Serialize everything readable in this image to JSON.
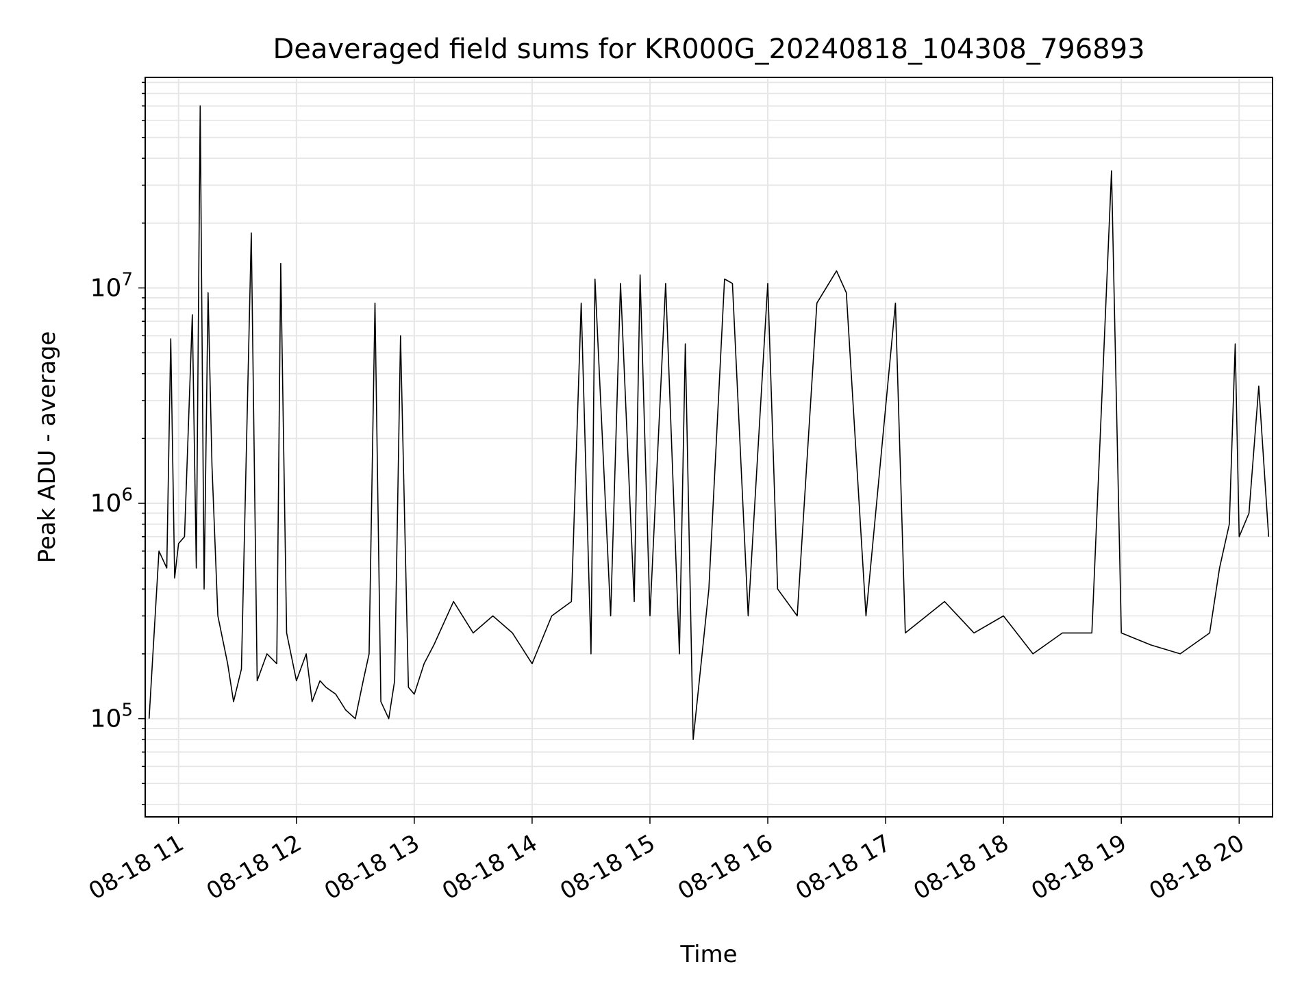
{
  "chart_data": {
    "type": "line",
    "title": "Deaveraged field sums for KR000G_20240818_104308_796893",
    "xlabel": "Time",
    "ylabel": "Peak ADU - average",
    "y_scale": "log",
    "ylim": [
      35000,
      95000000
    ],
    "xlim": [
      "08-18 10:43",
      "08-18 20:17"
    ],
    "x_ticks": [
      "08-18 11",
      "08-18 12",
      "08-18 13",
      "08-18 14",
      "08-18 15",
      "08-18 16",
      "08-18 17",
      "08-18 18",
      "08-18 19",
      "08-18 20"
    ],
    "y_ticks": [
      {
        "base": "10",
        "exp": "5",
        "value": 100000
      },
      {
        "base": "10",
        "exp": "6",
        "value": 1000000
      },
      {
        "base": "10",
        "exp": "7",
        "value": 10000000
      }
    ],
    "grid": true,
    "line_color": "#000000",
    "series": [
      {
        "points": [
          [
            "08-18 10:45",
            100000
          ],
          [
            "08-18 10:50",
            600000
          ],
          [
            "08-18 10:54",
            500000
          ],
          [
            "08-18 10:56",
            5800000
          ],
          [
            "08-18 10:58",
            450000
          ],
          [
            "08-18 11:00",
            650000
          ],
          [
            "08-18 11:03",
            700000
          ],
          [
            "08-18 11:07",
            7500000
          ],
          [
            "08-18 11:09",
            500000
          ],
          [
            "08-18 11:11",
            70000000
          ],
          [
            "08-18 11:13",
            400000
          ],
          [
            "08-18 11:15",
            9500000
          ],
          [
            "08-18 11:17",
            1500000
          ],
          [
            "08-18 11:20",
            300000
          ],
          [
            "08-18 11:25",
            180000
          ],
          [
            "08-18 11:28",
            120000
          ],
          [
            "08-18 11:32",
            170000
          ],
          [
            "08-18 11:37",
            18000000
          ],
          [
            "08-18 11:40",
            150000
          ],
          [
            "08-18 11:45",
            200000
          ],
          [
            "08-18 11:50",
            180000
          ],
          [
            "08-18 11:55",
            250000
          ],
          [
            "08-18 12:00",
            150000
          ],
          [
            "08-18 12:05",
            200000
          ],
          [
            "08-18 11:52",
            13000000
          ],
          [
            "08-18 12:08",
            120000
          ],
          [
            "08-18 12:12",
            150000
          ],
          [
            "08-18 12:15",
            140000
          ],
          [
            "08-18 12:20",
            130000
          ],
          [
            "08-18 12:25",
            110000
          ],
          [
            "08-18 12:30",
            100000
          ],
          [
            "08-18 12:34",
            150000
          ],
          [
            "08-18 12:37",
            200000
          ],
          [
            "08-18 12:40",
            8500000
          ],
          [
            "08-18 12:43",
            120000
          ],
          [
            "08-18 12:47",
            100000
          ],
          [
            "08-18 12:50",
            150000
          ],
          [
            "08-18 12:53",
            6000000
          ],
          [
            "08-18 12:57",
            140000
          ],
          [
            "08-18 13:00",
            130000
          ],
          [
            "08-18 13:05",
            180000
          ],
          [
            "08-18 13:10",
            220000
          ],
          [
            "08-18 13:20",
            350000
          ],
          [
            "08-18 13:30",
            250000
          ],
          [
            "08-18 13:40",
            300000
          ],
          [
            "08-18 13:50",
            250000
          ],
          [
            "08-18 14:00",
            180000
          ],
          [
            "08-18 14:10",
            300000
          ],
          [
            "08-18 14:20",
            350000
          ],
          [
            "08-18 14:25",
            8500000
          ],
          [
            "08-18 14:30",
            200000
          ],
          [
            "08-18 14:32",
            11000000
          ],
          [
            "08-18 14:40",
            300000
          ],
          [
            "08-18 14:45",
            10500000
          ],
          [
            "08-18 14:52",
            350000
          ],
          [
            "08-18 14:55",
            11500000
          ],
          [
            "08-18 15:00",
            300000
          ],
          [
            "08-18 15:08",
            10500000
          ],
          [
            "08-18 15:15",
            200000
          ],
          [
            "08-18 15:18",
            5500000
          ],
          [
            "08-18 15:22",
            80000
          ],
          [
            "08-18 15:30",
            400000
          ],
          [
            "08-18 15:38",
            11000000
          ],
          [
            "08-18 15:42",
            10500000
          ],
          [
            "08-18 15:50",
            300000
          ],
          [
            "08-18 16:00",
            10500000
          ],
          [
            "08-18 16:05",
            400000
          ],
          [
            "08-18 16:15",
            300000
          ],
          [
            "08-18 16:25",
            8500000
          ],
          [
            "08-18 16:35",
            12000000
          ],
          [
            "08-18 16:40",
            9500000
          ],
          [
            "08-18 16:50",
            300000
          ],
          [
            "08-18 17:05",
            8500000
          ],
          [
            "08-18 17:10",
            250000
          ],
          [
            "08-18 17:30",
            350000
          ],
          [
            "08-18 17:45",
            250000
          ],
          [
            "08-18 18:00",
            300000
          ],
          [
            "08-18 18:15",
            200000
          ],
          [
            "08-18 18:30",
            250000
          ],
          [
            "08-18 18:45",
            250000
          ],
          [
            "08-18 18:55",
            35000000
          ],
          [
            "08-18 19:00",
            250000
          ],
          [
            "08-18 19:15",
            220000
          ],
          [
            "08-18 19:30",
            200000
          ],
          [
            "08-18 19:45",
            250000
          ],
          [
            "08-18 19:50",
            500000
          ],
          [
            "08-18 19:55",
            800000
          ],
          [
            "08-18 19:58",
            5500000
          ],
          [
            "08-18 20:00",
            700000
          ],
          [
            "08-18 20:05",
            900000
          ],
          [
            "08-18 20:10",
            3500000
          ],
          [
            "08-18 20:15",
            700000
          ]
        ]
      }
    ]
  }
}
